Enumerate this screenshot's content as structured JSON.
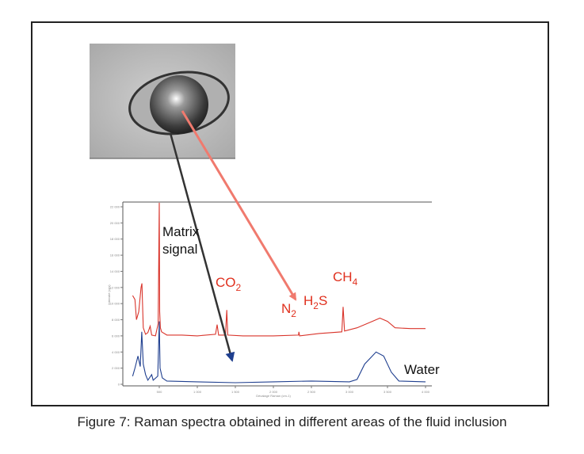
{
  "caption": "Figure 7: Raman spectra obtained in different areas of the fluid inclusion",
  "annotations": {
    "matrix_line1": "Matrix",
    "matrix_line2": "signal",
    "co2": "CO",
    "co2_sub": "2",
    "n2": "N",
    "n2_sub": "2",
    "h2s_a": "H",
    "h2s_sub": "2",
    "h2s_b": "S",
    "ch4": "CH",
    "ch4_sub": "4",
    "water": "Water"
  },
  "colors": {
    "red_series": "#d9342b",
    "blue_series": "#1f3f8f",
    "red_arrow": "#f07a6e",
    "black_arrow": "#333333",
    "annotation_red": "#e0301e"
  },
  "chart_data": {
    "type": "line",
    "xlabel": "Décalage Raman (cm-1)",
    "ylabel": "Intensité (cps)",
    "xlim": [
      0,
      4000
    ],
    "ylim": [
      0,
      22000
    ],
    "xticks": [
      500,
      1000,
      1500,
      2000,
      2500,
      3000,
      3500,
      4000
    ],
    "xtick_labels": [
      "500",
      "1 000",
      "1 500",
      "2 000",
      "2 500",
      "3 000",
      "3 500",
      "4 000"
    ],
    "yticks": [
      0,
      2000,
      4000,
      6000,
      8000,
      10000,
      12000,
      14000,
      16000,
      18000,
      20000,
      22000
    ],
    "ytick_labels": [
      "0",
      "2 000",
      "4 000",
      "6 000",
      "8 000",
      "10 000",
      "12 000",
      "14 000",
      "16 000",
      "18 000",
      "20 000",
      "22 000"
    ],
    "grid": false,
    "series": [
      {
        "color": "#d9342b",
        "x": [
          150,
          180,
          200,
          230,
          260,
          272,
          290,
          320,
          350,
          380,
          400,
          450,
          485,
          500,
          505,
          515,
          530,
          600,
          800,
          1000,
          1240,
          1260,
          1280,
          1370,
          1388,
          1400,
          1600,
          2000,
          2330,
          2335,
          2345,
          2600,
          2900,
          2917,
          2935,
          3100,
          3300,
          3400,
          3500,
          3600,
          3800,
          4000
        ],
        "y": [
          11000,
          10500,
          8000,
          9000,
          12000,
          12500,
          7000,
          6200,
          6400,
          7200,
          6100,
          6000,
          7500,
          22500,
          9000,
          7000,
          6500,
          6100,
          6100,
          6000,
          6200,
          7400,
          6100,
          6100,
          9200,
          6100,
          6000,
          6000,
          6100,
          6500,
          6000,
          6300,
          6500,
          9600,
          6600,
          7000,
          7800,
          8200,
          7800,
          7000,
          6900,
          6900
        ]
      },
      {
        "color": "#1f3f8f",
        "x": [
          150,
          180,
          220,
          250,
          270,
          290,
          320,
          350,
          400,
          420,
          480,
          500,
          510,
          540,
          600,
          1000,
          1500,
          2000,
          2500,
          3000,
          3100,
          3200,
          3300,
          3350,
          3450,
          3550,
          3650,
          4000
        ],
        "y": [
          1000,
          2000,
          3500,
          2200,
          6500,
          2500,
          1200,
          500,
          1200,
          500,
          1000,
          7800,
          2000,
          800,
          400,
          300,
          200,
          300,
          400,
          300,
          600,
          2500,
          3500,
          4000,
          3500,
          1500,
          400,
          300
        ]
      }
    ]
  }
}
